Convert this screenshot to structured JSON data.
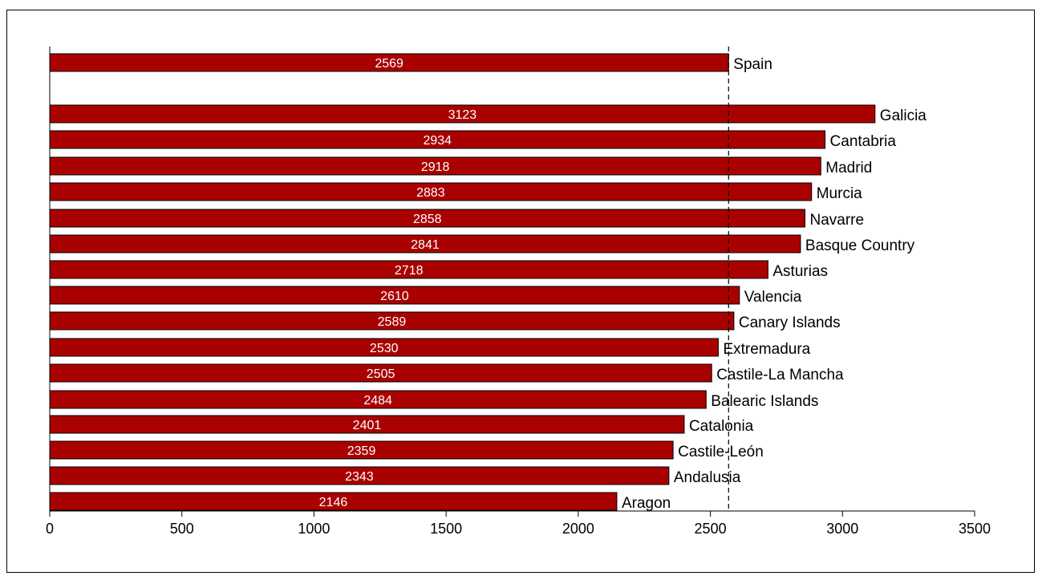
{
  "chart_data": {
    "type": "bar",
    "orientation": "horizontal",
    "bar_color": "#a90000",
    "reference_line": {
      "value": 2569,
      "style": "dashed"
    },
    "categories": [
      "Spain",
      "Galicia",
      "Cantabria",
      "Madrid",
      "Murcia",
      "Navarre",
      "Basque Country",
      "Asturias",
      "Valencia",
      "Canary Islands",
      "Extremadura",
      "Castile-La Mancha",
      "Balearic Islands",
      "Catalonia",
      "Castile-León",
      "Andalusia",
      "Aragon"
    ],
    "values": [
      2569,
      3123,
      2934,
      2918,
      2883,
      2858,
      2841,
      2718,
      2610,
      2589,
      2530,
      2505,
      2484,
      2401,
      2359,
      2343,
      2146
    ],
    "value_labels": [
      "2569",
      "3123",
      "2934",
      "2918",
      "2883",
      "2858",
      "2841",
      "2718",
      "2610",
      "2589",
      "2530",
      "2505",
      "2484",
      "2401",
      "2359",
      "2343",
      "2146"
    ],
    "xlim": [
      0,
      3500
    ],
    "xticks": [
      "0",
      "500",
      "1000",
      "1500",
      "2000",
      "2500",
      "3000",
      "3500"
    ],
    "title": "",
    "xlabel": "",
    "ylabel": "",
    "grid": false,
    "legend": "none"
  }
}
